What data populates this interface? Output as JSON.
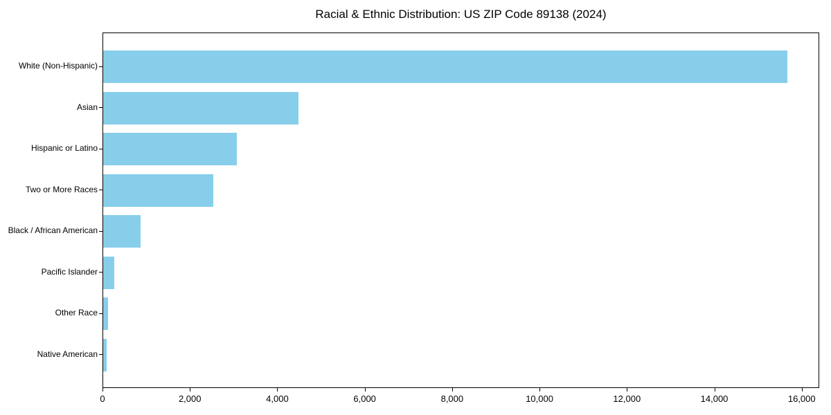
{
  "chart_data": {
    "type": "bar",
    "orientation": "horizontal",
    "title": "Racial & Ethnic Distribution: US ZIP Code 89138 (2024)",
    "categories": [
      "White (Non-Hispanic)",
      "Asian",
      "Hispanic or Latino",
      "Two or More Races",
      "Black / African American",
      "Pacific Islander",
      "Other Race",
      "Native American"
    ],
    "values": [
      15680,
      4470,
      3060,
      2520,
      850,
      250,
      110,
      80
    ],
    "xlabel": "",
    "ylabel": "",
    "xlim": [
      0,
      16400
    ],
    "x_ticks": [
      0,
      2000,
      4000,
      6000,
      8000,
      10000,
      12000,
      14000,
      16000
    ],
    "x_tick_labels": [
      "0",
      "2,000",
      "4,000",
      "6,000",
      "8,000",
      "10,000",
      "12,000",
      "14,000",
      "16,000"
    ],
    "bar_color": "#87CEEB",
    "grid": false,
    "legend_position": "none",
    "plot_background": "#ffffff"
  }
}
